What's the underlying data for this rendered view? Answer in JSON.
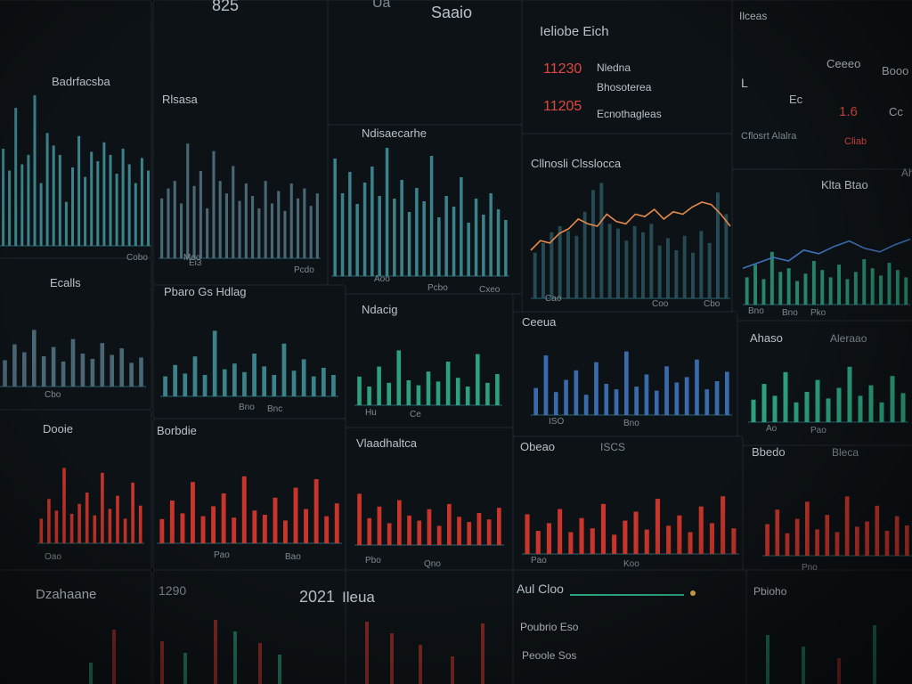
{
  "colors": {
    "background": "#07090c",
    "panel": "#0d1216",
    "grid_line": "#1e262c",
    "teal": "#3f8c95",
    "slate": "#4f6f7e",
    "blue": "#3d72b8",
    "green": "#2fae88",
    "red": "#d9382c",
    "orange": "#e58a4a",
    "label": "#b9c2c8",
    "label_dim": "#7f8a91",
    "label_red": "#e0473e"
  },
  "header": {
    "top_left": "825",
    "top_mid": "Saaio",
    "top_mid_small": "Ua"
  },
  "stats_panel": {
    "title": "Ieliobe Eich",
    "rows": [
      {
        "value": "11230",
        "label": "Nledna"
      },
      {
        "value": "",
        "label": "Bhosoterea"
      },
      {
        "value": "11205",
        "label": "Ecnothagleas"
      }
    ]
  },
  "right_top_panel": {
    "title": "Ilceas",
    "value_a": "Ceeeo",
    "value_b": "Booo",
    "row_labels": [
      "L",
      "Ec",
      "1.6",
      "Cc"
    ],
    "footer_a": "Cflosrt Alalra",
    "footer_b": "Cliab"
  },
  "chart_data": [
    {
      "type": "bar",
      "title": "Badrfacsba",
      "series": [
        {
          "values": [
            62,
            48,
            88,
            52,
            58,
            96,
            40,
            72,
            64,
            58,
            28,
            50,
            70,
            44,
            60,
            54,
            66,
            58,
            46,
            62,
            52,
            40,
            56,
            48
          ],
          "color": "#3f8c95"
        }
      ],
      "tick_labels": [
        "Cobo",
        "Moo"
      ]
    },
    {
      "type": "bar",
      "title": "Rlsasa",
      "series": [
        {
          "values": [
            48,
            56,
            62,
            44,
            92,
            58,
            70,
            40,
            86,
            62,
            52,
            74,
            46,
            60,
            50,
            40,
            62,
            44,
            54,
            38,
            60,
            48,
            56,
            42,
            52
          ],
          "color": "#4f6f7e"
        }
      ],
      "tick_labels": [
        "Ei3",
        "Pcdo"
      ]
    },
    {
      "type": "bar",
      "title": "Ndisaecarhe",
      "series": [
        {
          "values": [
            88,
            62,
            78,
            54,
            70,
            82,
            60,
            96,
            58,
            72,
            48,
            66,
            56,
            90,
            44,
            60,
            52,
            74,
            40,
            58,
            46,
            62,
            50,
            42
          ],
          "color": "#3f8c95"
        }
      ],
      "tick_labels": [
        "Aoo",
        "Pcbo",
        "Cxeo"
      ]
    },
    {
      "type": "line",
      "title": "Cllnosli Clsslocca",
      "series": [
        {
          "values": [
            38,
            46,
            55,
            60,
            56,
            52,
            72,
            90,
            96,
            62,
            58,
            48,
            60,
            55,
            62,
            44,
            50,
            40,
            52,
            38,
            56,
            46,
            88,
            70
          ],
          "color": "#2f5e6a"
        },
        {
          "values": [
            40,
            48,
            46,
            54,
            58,
            66,
            62,
            60,
            70,
            64,
            62,
            70,
            68,
            74,
            66,
            72,
            70,
            76,
            80,
            78,
            70,
            60
          ],
          "color": "#e58a4a"
        }
      ],
      "tick_labels": [
        "Cao",
        "Coo",
        "Cbo"
      ]
    },
    {
      "type": "line",
      "title": "Klta Btao",
      "subtitle": "Ahxsan",
      "series": [
        {
          "values": [
            30,
            44,
            28,
            58,
            36,
            40,
            26,
            34,
            48,
            38,
            30,
            44,
            28,
            36,
            50,
            40,
            32,
            46,
            38,
            30
          ],
          "color": "#2fae88"
        },
        {
          "values": [
            40,
            46,
            52,
            48,
            60,
            56,
            64,
            70,
            62,
            58,
            66,
            72
          ],
          "color": "#3d72b8"
        }
      ],
      "tick_labels": [
        "Bno",
        "Bno",
        "Pko"
      ]
    },
    {
      "type": "bar",
      "title": "Ecalls",
      "series": [
        {
          "values": [
            40,
            64,
            52,
            86,
            46,
            60,
            38,
            72,
            50,
            42,
            66,
            48,
            58,
            36,
            44
          ],
          "color": "#4f6f7e"
        }
      ],
      "tick_labels": [
        "Cbo"
      ]
    },
    {
      "type": "bar",
      "title": "Pbaro Gs Hdlag",
      "series": [
        {
          "values": [
            28,
            44,
            32,
            56,
            30,
            92,
            38,
            46,
            34,
            60,
            42,
            30,
            74,
            36,
            52,
            28,
            40,
            30
          ],
          "color": "#3f8c95"
        }
      ],
      "tick_labels": [
        "Bno",
        "Bnc"
      ]
    },
    {
      "type": "bar",
      "title": "Ndacig",
      "series": [
        {
          "values": [
            46,
            30,
            62,
            36,
            88,
            40,
            32,
            54,
            38,
            70,
            44,
            30,
            82,
            36,
            50
          ],
          "color": "#2fae88"
        }
      ],
      "tick_labels": [
        "Hu",
        "Ce"
      ]
    },
    {
      "type": "bar",
      "title": "Ceeua",
      "series": [
        {
          "values": [
            40,
            88,
            34,
            52,
            66,
            30,
            78,
            46,
            38,
            94,
            42,
            60,
            36,
            72,
            48,
            56,
            82,
            38,
            50,
            64
          ],
          "color": "#3d72b8"
        }
      ],
      "tick_labels": [
        "ISO",
        "Bno"
      ]
    },
    {
      "type": "bar",
      "title": "Ahaso",
      "subtitle": "Aleraao",
      "series": [
        {
          "values": [
            34,
            58,
            40,
            76,
            30,
            46,
            64,
            36,
            52,
            84,
            40,
            56,
            30,
            70,
            44
          ],
          "color": "#2fae88"
        }
      ],
      "tick_labels": [
        "Ao",
        "Pao"
      ]
    },
    {
      "type": "bar",
      "title": "Dooie",
      "series": [
        {
          "values": [
            30,
            54,
            40,
            92,
            36,
            48,
            62,
            34,
            86,
            42,
            58,
            30,
            74,
            46
          ],
          "color": "#d9382c"
        }
      ],
      "tick_labels": [
        "Oao"
      ]
    },
    {
      "type": "bar",
      "title": "Borbdie",
      "series": [
        {
          "values": [
            34,
            60,
            42,
            86,
            38,
            52,
            70,
            36,
            94,
            46,
            40,
            64,
            32,
            78,
            48,
            90,
            38,
            56
          ],
          "color": "#d9382c"
        }
      ],
      "tick_labels": [
        "Pao",
        "Bao"
      ]
    },
    {
      "type": "bar",
      "title": "Vlaadhaltca",
      "series": [
        {
          "values": [
            80,
            42,
            60,
            34,
            70,
            46,
            38,
            56,
            30,
            64,
            44,
            36,
            50,
            40,
            58
          ],
          "color": "#d9382c"
        }
      ],
      "tick_labels": [
        "Pbo",
        "Qno"
      ]
    },
    {
      "type": "bar",
      "title": "Obeao",
      "subtitle": "ISCS",
      "series": [
        {
          "values": [
            62,
            36,
            48,
            70,
            34,
            56,
            40,
            78,
            30,
            52,
            66,
            38,
            86,
            44,
            60,
            34,
            74,
            48,
            90,
            40
          ],
          "color": "#d9382c"
        }
      ],
      "tick_labels": [
        "Pao",
        "Koo"
      ]
    },
    {
      "type": "bar",
      "title": "Bbedo",
      "subtitle": "Bleca",
      "series": [
        {
          "values": [
            48,
            70,
            34,
            56,
            82,
            40,
            62,
            36,
            90,
            44,
            52,
            76,
            38,
            60,
            46
          ],
          "color": "#d9382c"
        }
      ],
      "tick_labels": [
        "Pno"
      ]
    }
  ],
  "bottom_row": {
    "left_title": "Dzahaane",
    "left_value": "1290",
    "mid_value": "2021",
    "mid_label": "Ileua",
    "feed_title": "Aul Cloo",
    "feed_lines": [
      "Poubrio Eso",
      "Peoole Sos"
    ],
    "right_title": "Pbioho"
  }
}
